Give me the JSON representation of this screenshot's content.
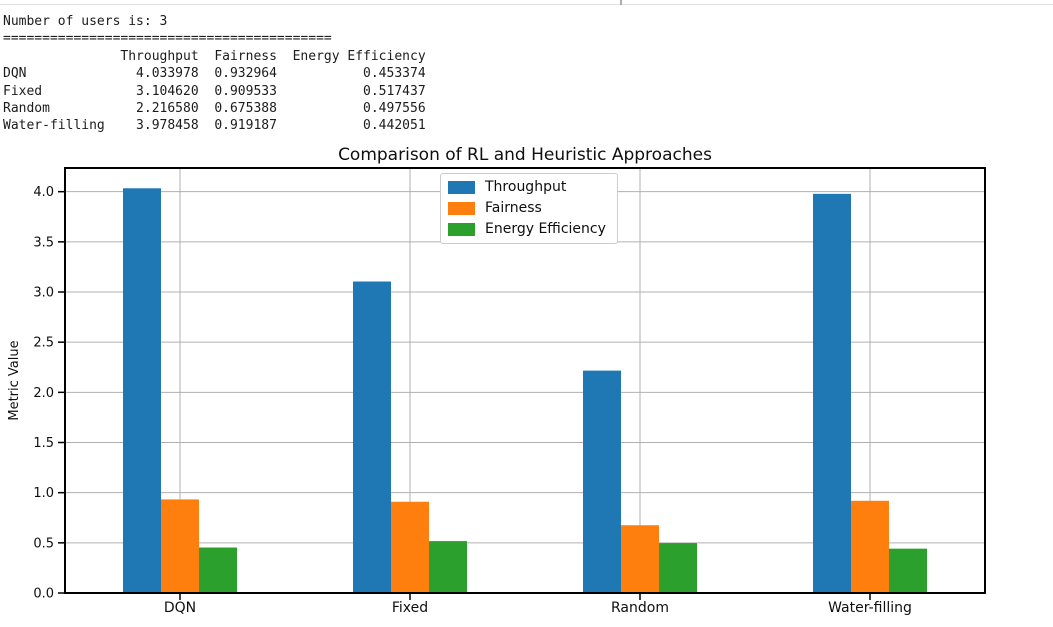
{
  "console": {
    "lines": [
      "Number of users is: 3",
      "==========================================",
      "               Throughput  Fairness  Energy Efficiency",
      "DQN              4.033978  0.932964           0.453374",
      "Fixed            3.104620  0.909533           0.517437",
      "Random           2.216580  0.675388           0.497556",
      "Water-filling    3.978458  0.919187           0.442051"
    ]
  },
  "chart_data": {
    "type": "bar",
    "title": "Comparison of RL and Heuristic Approaches",
    "xlabel": "",
    "ylabel": "Metric Value",
    "categories": [
      "DQN",
      "Fixed",
      "Random",
      "Water-filling"
    ],
    "series": [
      {
        "name": "Throughput",
        "color": "#1f77b4",
        "values": [
          4.033978,
          3.10462,
          2.21658,
          3.978458
        ]
      },
      {
        "name": "Fairness",
        "color": "#ff7f0e",
        "values": [
          0.932964,
          0.909533,
          0.675388,
          0.919187
        ]
      },
      {
        "name": "Energy Efficiency",
        "color": "#2ca02c",
        "values": [
          0.453374,
          0.517437,
          0.497556,
          0.442051
        ]
      }
    ],
    "ylim": [
      0,
      4.236
    ],
    "yticks": [
      0.0,
      0.5,
      1.0,
      1.5,
      2.0,
      2.5,
      3.0,
      3.5,
      4.0
    ],
    "grid": true,
    "legend_position": "upper center"
  },
  "ui": {
    "background_color": "#ffffff",
    "grid_color": "#b0b0b0",
    "spine_color": "#000000",
    "legend_border_color": "#cccccc"
  }
}
